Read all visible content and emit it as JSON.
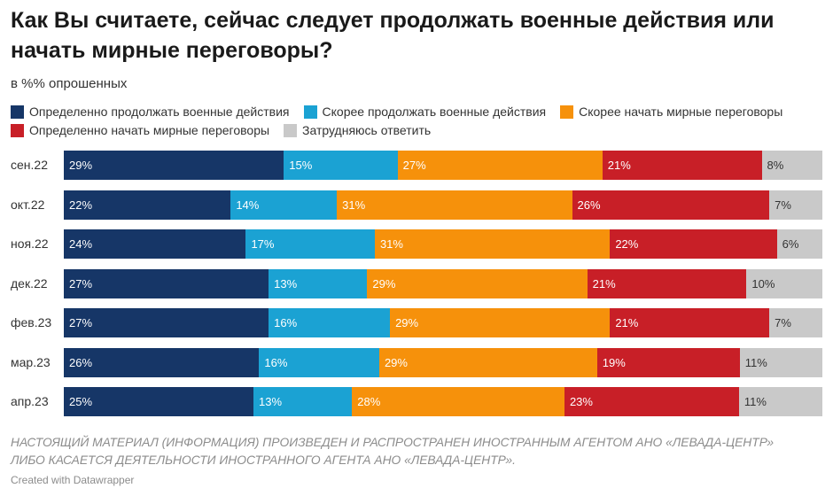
{
  "chart_data": {
    "type": "bar",
    "orientation": "horizontal",
    "stacked": true,
    "title_lines": [
      "Как Вы считаете, сейчас следует продолжать военные действия или",
      "начать мирные переговоры?"
    ],
    "subtitle": "в %% опрошенных",
    "legend": "top-left",
    "value_suffix": "%",
    "categories": [
      "сен.22",
      "окт.22",
      "ноя.22",
      "дек.22",
      "фев.23",
      "мар.23",
      "апр.23"
    ],
    "series": [
      {
        "name": "Определенно продолжать военные действия",
        "color": "#163667",
        "label_color": "#ffffff",
        "values": [
          29,
          22,
          24,
          27,
          27,
          26,
          25
        ]
      },
      {
        "name": "Скорее продолжать военные действия",
        "color": "#1ba2d3",
        "label_color": "#ffffff",
        "values": [
          15,
          14,
          17,
          13,
          16,
          16,
          13
        ]
      },
      {
        "name": "Скорее начать мирные переговоры",
        "color": "#f6910b",
        "label_color": "#ffffff",
        "values": [
          27,
          31,
          31,
          29,
          29,
          29,
          28
        ]
      },
      {
        "name": "Определенно начать мирные переговоры",
        "color": "#c81f27",
        "label_color": "#ffffff",
        "values": [
          21,
          26,
          22,
          21,
          21,
          19,
          23
        ]
      },
      {
        "name": "Затрудняюсь ответить",
        "color": "#c9c9c9",
        "label_color": "#333333",
        "values": [
          8,
          7,
          6,
          10,
          7,
          11,
          11
        ]
      }
    ]
  },
  "footer": {
    "disclaimer_lines": [
      "НАСТОЯЩИЙ МАТЕРИАЛ (ИНФОРМАЦИЯ) ПРОИЗВЕДЕН И РАСПРОСТРАНЕН ИНОСТРАННЫМ АГЕНТОМ АНО «ЛЕВАДА-ЦЕНТР»",
      "ЛИБО КАСАЕТСЯ ДЕЯТЕЛЬНОСТИ ИНОСТРАННОГО АГЕНТА АНО «ЛЕВАДА-ЦЕНТР»."
    ],
    "credit": "Created with Datawrapper"
  }
}
